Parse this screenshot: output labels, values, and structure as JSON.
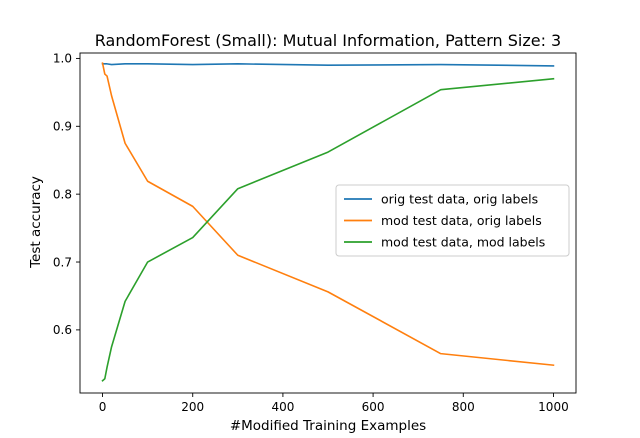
{
  "chart_data": {
    "type": "line",
    "title": "RandomForest (Small): Mutual Information, Pattern Size: 3",
    "xlabel": "#Modified Training Examples",
    "ylabel": "Test accuracy",
    "xlim": [
      -50,
      1050
    ],
    "ylim": [
      0.507,
      1.008
    ],
    "xticks": [
      0,
      200,
      400,
      600,
      800,
      1000
    ],
    "xtick_labels": [
      "0",
      "200",
      "400",
      "600",
      "800",
      "1000"
    ],
    "yticks": [
      0.6,
      0.7,
      0.8,
      0.9,
      1.0
    ],
    "ytick_labels": [
      "0.6",
      "0.7",
      "0.8",
      "0.9",
      "1.0"
    ],
    "grid": false,
    "legend": "center-right",
    "series": [
      {
        "name": "orig test data, orig labels",
        "color": "#1f77b4",
        "x": [
          0,
          5,
          10,
          20,
          50,
          100,
          200,
          300,
          500,
          750,
          1000
        ],
        "y": [
          0.992,
          0.992,
          0.992,
          0.991,
          0.992,
          0.992,
          0.991,
          0.992,
          0.99,
          0.991,
          0.989
        ]
      },
      {
        "name": "mod test data, orig labels",
        "color": "#ff7f0e",
        "x": [
          0,
          5,
          10,
          20,
          50,
          100,
          200,
          300,
          500,
          750,
          1000
        ],
        "y": [
          0.993,
          0.977,
          0.974,
          0.945,
          0.875,
          0.819,
          0.782,
          0.71,
          0.656,
          0.565,
          0.548
        ]
      },
      {
        "name": "mod test data, mod labels",
        "color": "#2ca02c",
        "x": [
          0,
          5,
          10,
          20,
          50,
          100,
          200,
          300,
          500,
          750,
          1000
        ],
        "y": [
          0.525,
          0.528,
          0.545,
          0.575,
          0.642,
          0.7,
          0.736,
          0.808,
          0.862,
          0.954,
          0.97
        ]
      }
    ]
  }
}
